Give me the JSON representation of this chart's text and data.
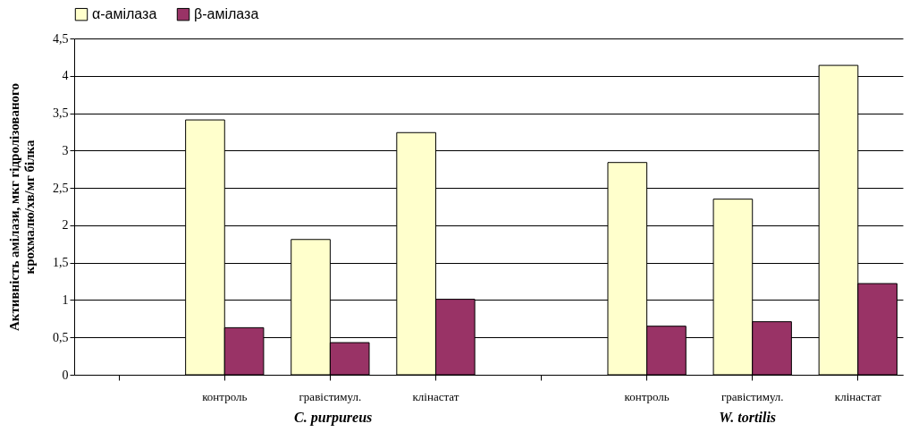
{
  "chart_data": {
    "type": "bar",
    "ylabel": "Активність амілази, мкг гідролізованого крохмалю/хв/мг білка",
    "categories": [
      null,
      "контроль",
      "гравістимул.",
      "клінастат",
      null,
      "контроль",
      "гравістимул.",
      "клінастат"
    ],
    "series": [
      {
        "name": "α-амілаза",
        "color": "#ffffcc",
        "values": [
          null,
          3.41,
          1.81,
          3.24,
          null,
          2.84,
          2.35,
          4.14
        ]
      },
      {
        "name": "β-амілаза",
        "color": "#993366",
        "values": [
          null,
          0.63,
          0.43,
          1.01,
          null,
          0.65,
          0.71,
          1.22
        ]
      }
    ],
    "ylim": [
      0,
      4.5
    ],
    "yticks": [
      0,
      {
        "value": 0.5,
        "label": "0,5"
      },
      1,
      {
        "value": 1.5,
        "label": "1,5"
      },
      2,
      {
        "value": 2.5,
        "label": "2,5"
      },
      3,
      {
        "value": 3.5,
        "label": "3,5"
      },
      4,
      {
        "value": 4.5,
        "label": "4,5"
      }
    ],
    "grid": "y",
    "legend": "top",
    "annotations": [
      "C. purpureus",
      "W. tortilis"
    ]
  }
}
